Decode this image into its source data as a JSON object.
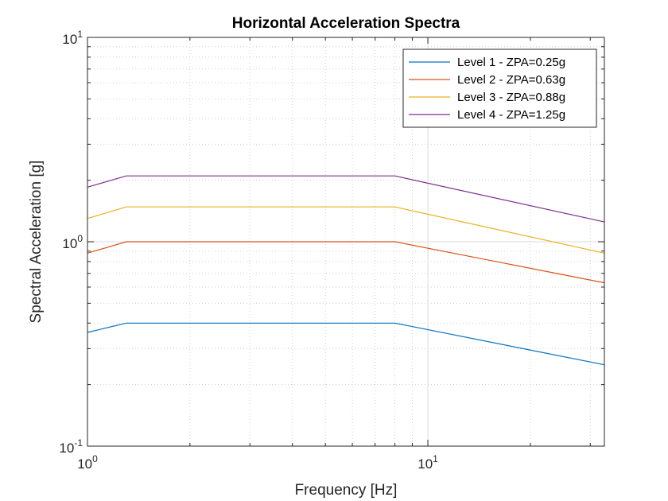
{
  "chart_data": {
    "type": "line",
    "title": "Horizontal Acceleration Spectra",
    "xlabel": "Frequency [Hz]",
    "ylabel": "Spectral Acceleration [g]",
    "x_scale": "log",
    "y_scale": "log",
    "xlim": [
      1,
      33
    ],
    "ylim": [
      0.1,
      10
    ],
    "grid": true,
    "legend_position": "top-right",
    "x_ticks": [
      {
        "value": 1,
        "base": "10",
        "exp": "0"
      },
      {
        "value": 10,
        "base": "10",
        "exp": "1"
      }
    ],
    "y_ticks": [
      {
        "value": 0.1,
        "base": "10",
        "exp": "-1"
      },
      {
        "value": 1,
        "base": "10",
        "exp": "0"
      },
      {
        "value": 10,
        "base": "10",
        "exp": "1"
      }
    ],
    "x": [
      1,
      1.3,
      8.0,
      33
    ],
    "series": [
      {
        "name": "Level 1 - ZPA=0.25g",
        "color": "#0072BD",
        "values": [
          0.36,
          0.4,
          0.4,
          0.25
        ]
      },
      {
        "name": "Level 2 - ZPA=0.63g",
        "color": "#D95319",
        "values": [
          0.88,
          1.0,
          1.0,
          0.63
        ]
      },
      {
        "name": "Level 3 - ZPA=0.88g",
        "color": "#EDB120",
        "values": [
          1.3,
          1.48,
          1.48,
          0.88
        ]
      },
      {
        "name": "Level 4 - ZPA=1.25g",
        "color": "#7E2F8E",
        "values": [
          1.85,
          2.1,
          2.1,
          1.25
        ]
      }
    ]
  }
}
